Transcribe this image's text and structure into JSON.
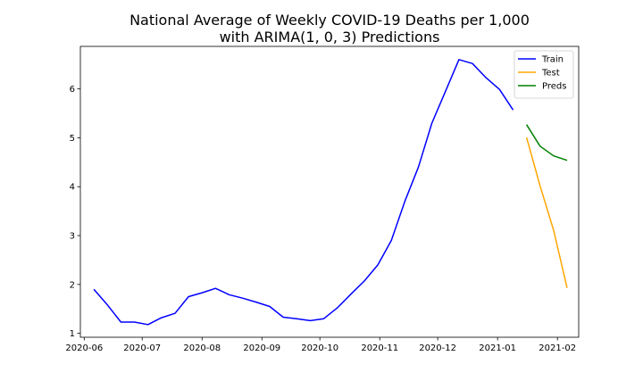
{
  "chart_data": {
    "type": "line",
    "title": [
      "National Average of Weekly COVID-19 Deaths per 1,000",
      "with ARIMA(1, 0, 3) Predictions"
    ],
    "xlabel": "",
    "ylabel": "",
    "x_axis": {
      "type": "date",
      "range": [
        "2020-05-30",
        "2021-02-12"
      ],
      "ticks": [
        "2020-06-01",
        "2020-07-01",
        "2020-08-01",
        "2020-09-01",
        "2020-10-01",
        "2020-11-01",
        "2020-12-01",
        "2021-01-01",
        "2021-02-01"
      ],
      "tick_labels": [
        "2020-06",
        "2020-07",
        "2020-08",
        "2020-09",
        "2020-10",
        "2020-11",
        "2020-12",
        "2021-01",
        "2021-02"
      ]
    },
    "y_axis": {
      "range": [
        0.92,
        6.87
      ],
      "ticks": [
        1,
        2,
        3,
        4,
        5,
        6
      ],
      "tick_labels": [
        "1",
        "2",
        "3",
        "4",
        "5",
        "6"
      ]
    },
    "grid": false,
    "legend": {
      "position": "top-right",
      "entries": [
        "Train",
        "Test",
        "Preds"
      ]
    },
    "series": [
      {
        "name": "Train",
        "color": "#0000ff",
        "points": [
          {
            "x": "2020-06-06",
            "y": 1.9
          },
          {
            "x": "2020-06-13",
            "y": 1.58
          },
          {
            "x": "2020-06-20",
            "y": 1.23
          },
          {
            "x": "2020-06-27",
            "y": 1.23
          },
          {
            "x": "2020-07-04",
            "y": 1.18
          },
          {
            "x": "2020-07-11",
            "y": 1.32
          },
          {
            "x": "2020-07-18",
            "y": 1.41
          },
          {
            "x": "2020-07-25",
            "y": 1.75
          },
          {
            "x": "2020-08-01",
            "y": 1.83
          },
          {
            "x": "2020-08-08",
            "y": 1.92
          },
          {
            "x": "2020-08-15",
            "y": 1.79
          },
          {
            "x": "2020-08-22",
            "y": 1.72
          },
          {
            "x": "2020-08-29",
            "y": 1.64
          },
          {
            "x": "2020-09-05",
            "y": 1.55
          },
          {
            "x": "2020-09-12",
            "y": 1.33
          },
          {
            "x": "2020-09-19",
            "y": 1.3
          },
          {
            "x": "2020-09-26",
            "y": 1.26
          },
          {
            "x": "2020-10-03",
            "y": 1.3
          },
          {
            "x": "2020-10-10",
            "y": 1.52
          },
          {
            "x": "2020-10-17",
            "y": 1.8
          },
          {
            "x": "2020-10-24",
            "y": 2.07
          },
          {
            "x": "2020-10-31",
            "y": 2.4
          },
          {
            "x": "2020-11-07",
            "y": 2.9
          },
          {
            "x": "2020-11-14",
            "y": 3.7
          },
          {
            "x": "2020-11-21",
            "y": 4.4
          },
          {
            "x": "2020-11-28",
            "y": 5.3
          },
          {
            "x": "2020-12-05",
            "y": 5.95
          },
          {
            "x": "2020-12-12",
            "y": 6.6
          },
          {
            "x": "2020-12-19",
            "y": 6.52
          },
          {
            "x": "2020-12-26",
            "y": 6.23
          },
          {
            "x": "2021-01-02",
            "y": 5.99
          },
          {
            "x": "2021-01-09",
            "y": 5.57
          }
        ]
      },
      {
        "name": "Test",
        "color": "#ffa500",
        "points": [
          {
            "x": "2021-01-16",
            "y": 5.01
          },
          {
            "x": "2021-01-23",
            "y": 4.02
          },
          {
            "x": "2021-01-30",
            "y": 3.11
          },
          {
            "x": "2021-02-06",
            "y": 1.93
          }
        ]
      },
      {
        "name": "Preds",
        "color": "#008000",
        "points": [
          {
            "x": "2021-01-16",
            "y": 5.27
          },
          {
            "x": "2021-01-23",
            "y": 4.83
          },
          {
            "x": "2021-01-30",
            "y": 4.63
          },
          {
            "x": "2021-02-06",
            "y": 4.54
          }
        ]
      }
    ]
  }
}
